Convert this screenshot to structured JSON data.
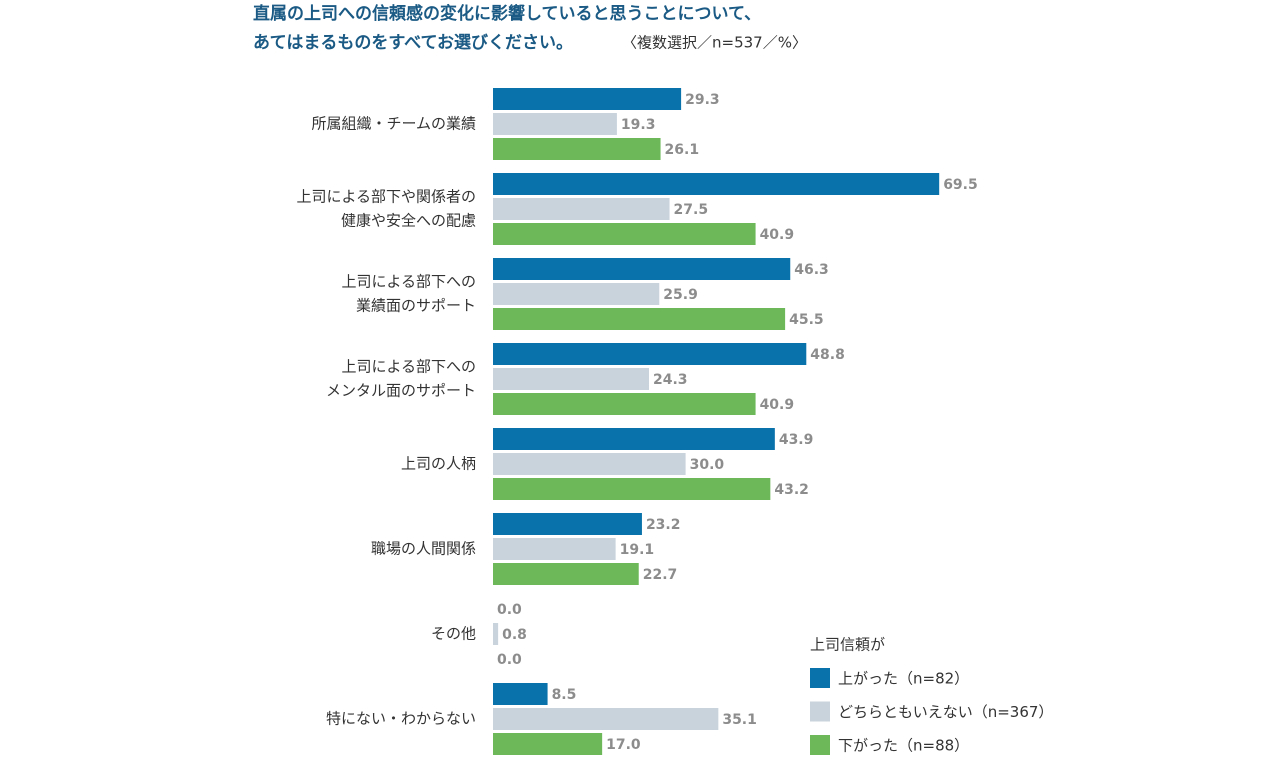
{
  "chart_data": {
    "type": "bar",
    "orientation": "horizontal",
    "title": [
      "直属の上司への信頼感の変化に影響していると思うことについて、",
      "あてはまるものをすべてお選びください。"
    ],
    "subtitle": "〈複数選択／n=537／%〉",
    "categories": [
      [
        "所属組織・チームの業績"
      ],
      [
        "上司による部下や関係者の",
        "健康や安全への配慮"
      ],
      [
        "上司による部下への",
        "業績面のサポート"
      ],
      [
        "上司による部下への",
        "メンタル面のサポート"
      ],
      [
        "上司の人柄"
      ],
      [
        "職場の人間関係"
      ],
      [
        "その他"
      ],
      [
        "特にない・わからない"
      ]
    ],
    "legend_title": "上司信頼が",
    "series": [
      {
        "name": "上がった（n=82）",
        "color": "#0a72aa",
        "values": [
          29.3,
          69.5,
          46.3,
          48.8,
          43.9,
          23.2,
          0,
          8.5
        ],
        "value_labels": [
          "29.3",
          "69.5",
          "46.3",
          "48.8",
          "43.9",
          "23.2",
          "0.0",
          "8.5"
        ]
      },
      {
        "name": "どちらともいえない（n=367）",
        "color": "#c8d3dc",
        "values": [
          19.3,
          27.5,
          25.9,
          24.3,
          30,
          19.1,
          0.8,
          35.1
        ],
        "value_labels": [
          "19.3",
          "27.5",
          "25.9",
          "24.3",
          "30.0",
          "19.1",
          "0.8",
          "35.1"
        ]
      },
      {
        "name": "下がった（n=88）",
        "color": "#6db95a",
        "values": [
          26.1,
          40.9,
          45.5,
          40.9,
          43.2,
          22.7,
          0,
          17
        ],
        "value_labels": [
          "26.1",
          "40.9",
          "45.5",
          "40.9",
          "43.2",
          "22.7",
          "0.0",
          "17.0"
        ]
      }
    ]
  }
}
